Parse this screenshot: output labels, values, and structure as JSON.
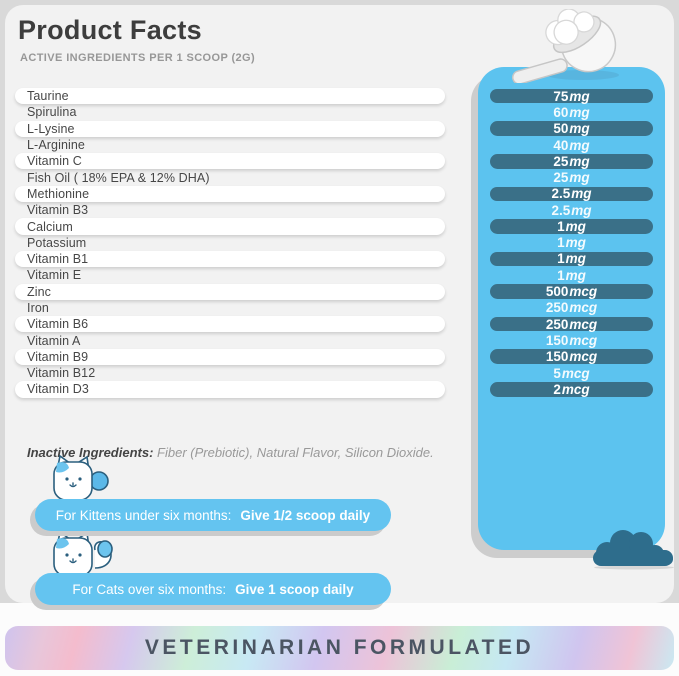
{
  "header": {
    "title": "Product Facts",
    "subtitle": "ACTIVE INGREDIENTS PER 1 SCOOP (2G)"
  },
  "ingredients": [
    {
      "name": "Taurine",
      "amount": "75",
      "unit": "mg"
    },
    {
      "name": "Spirulina",
      "amount": "60",
      "unit": "mg"
    },
    {
      "name": "L-Lysine",
      "amount": "50",
      "unit": "mg"
    },
    {
      "name": "L-Arginine",
      "amount": "40",
      "unit": "mg"
    },
    {
      "name": "Vitamin C",
      "amount": "25",
      "unit": "mg"
    },
    {
      "name": "Fish Oil ( 18% EPA & 12% DHA)",
      "amount": "25",
      "unit": "mg"
    },
    {
      "name": "Methionine",
      "amount": "2.5",
      "unit": "mg"
    },
    {
      "name": "Vitamin B3",
      "amount": "2.5",
      "unit": "mg"
    },
    {
      "name": "Calcium",
      "amount": "1",
      "unit": "mg"
    },
    {
      "name": "Potassium",
      "amount": "1",
      "unit": "mg"
    },
    {
      "name": "Vitamin B1",
      "amount": "1",
      "unit": "mg"
    },
    {
      "name": "Vitamin E",
      "amount": "1",
      "unit": "mg"
    },
    {
      "name": "Zinc",
      "amount": "500",
      "unit": "mcg"
    },
    {
      "name": "Iron",
      "amount": "250",
      "unit": "mcg"
    },
    {
      "name": "Vitamin B6",
      "amount": "250",
      "unit": "mcg"
    },
    {
      "name": "Vitamin A",
      "amount": "150",
      "unit": "mcg"
    },
    {
      "name": "Vitamin B9",
      "amount": "150",
      "unit": "mcg"
    },
    {
      "name": "Vitamin B12",
      "amount": "5",
      "unit": "mcg"
    },
    {
      "name": "Vitamin D3",
      "amount": "2",
      "unit": "mcg"
    }
  ],
  "inactive": {
    "label": "Inactive Ingredients:",
    "text": " Fiber (Prebiotic), Natural Flavor, Silicon Dioxide."
  },
  "dosage": [
    {
      "condition": "For Kittens under six months:",
      "instruction": "Give 1/2 scoop daily"
    },
    {
      "condition": "For Cats over six months:",
      "instruction": "Give 1 scoop daily"
    }
  ],
  "footer": {
    "text": "VETERINARIAN FORMULATED"
  },
  "icons": {
    "scoop": "scoop-icon",
    "kitten": "kitten-icon",
    "cat": "cat-icon",
    "bush": "bush-icon"
  },
  "colors": {
    "panel_blue": "#5cc3ef",
    "amount_pill_teal": "#3a7088",
    "banner_blue": "#64c4f0",
    "bush_teal": "#2e6d8c",
    "title_dark": "#3d3d3d",
    "card_bg": "#f2f2f2"
  }
}
